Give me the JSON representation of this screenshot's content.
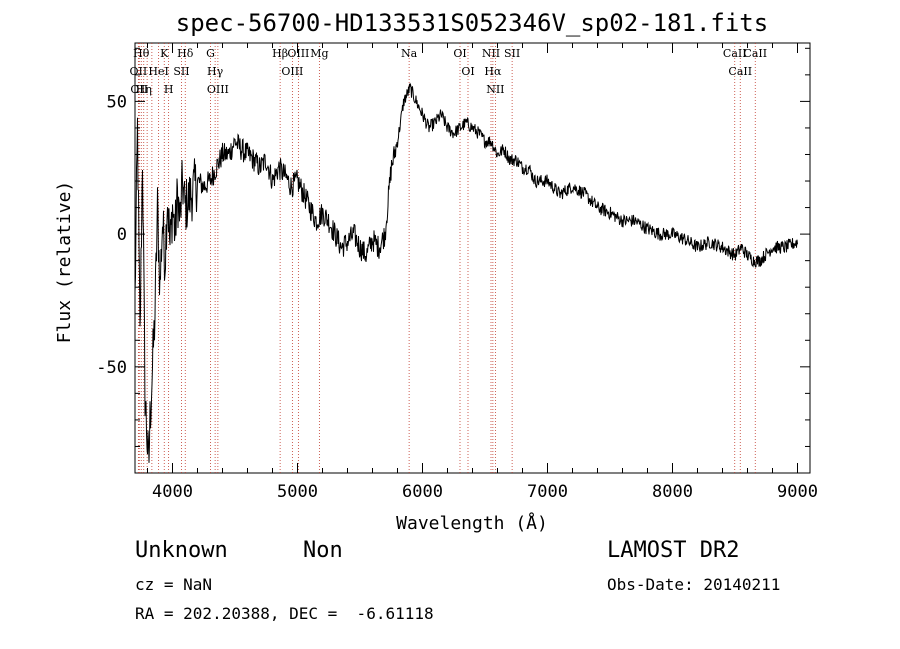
{
  "chart_data": {
    "type": "line",
    "title": "spec-56700-HD133531S052346V_sp02-181.fits",
    "xlabel": "Wavelength (Å)",
    "ylabel": "Flux (relative)",
    "xlim": [
      3700,
      9100
    ],
    "ylim": [
      -90,
      72
    ],
    "x_ticks": [
      4000,
      5000,
      6000,
      7000,
      8000,
      9000
    ],
    "y_ticks": [
      -50,
      0,
      50
    ],
    "grid": false,
    "series": [
      {
        "x": [
          3700,
          3720,
          3740,
          3760,
          3780,
          3800,
          3810,
          3820,
          3840,
          3860,
          3880,
          3900,
          3920,
          3940,
          3960,
          3980,
          4000,
          4020,
          4040,
          4060,
          4080,
          4100,
          4150,
          4200,
          4250,
          4300,
          4350,
          4400,
          4450,
          4500,
          4550,
          4600,
          4650,
          4700,
          4750,
          4800,
          4850,
          4900,
          4950,
          5000,
          5050,
          5100,
          5150,
          5200,
          5250,
          5300,
          5350,
          5400,
          5450,
          5500,
          5550,
          5600,
          5650,
          5700,
          5750,
          5800,
          5850,
          5900,
          5950,
          6000,
          6050,
          6100,
          6150,
          6200,
          6250,
          6300,
          6350,
          6400,
          6450,
          6500,
          6550,
          6600,
          6650,
          6700,
          6750,
          6800,
          6850,
          6900,
          7000,
          7100,
          7200,
          7300,
          7400,
          7500,
          7600,
          7700,
          7800,
          7900,
          8000,
          8100,
          8200,
          8300,
          8400,
          8500,
          8550,
          8600,
          8650,
          8700,
          8800,
          8900,
          9000
        ],
        "y": [
          -25,
          40,
          -40,
          30,
          -60,
          -80,
          -88,
          -70,
          -50,
          -30,
          10,
          -20,
          5,
          -10,
          15,
          -5,
          10,
          0,
          15,
          5,
          20,
          10,
          15,
          20,
          18,
          20,
          25,
          30,
          30,
          35,
          32,
          30,
          28,
          25,
          28,
          20,
          25,
          22,
          18,
          20,
          15,
          10,
          5,
          8,
          5,
          0,
          -5,
          -3,
          0,
          -5,
          -8,
          -2,
          -5,
          0,
          25,
          35,
          50,
          55,
          50,
          45,
          40,
          42,
          45,
          40,
          38,
          40,
          42,
          40,
          38,
          35,
          35,
          30,
          32,
          28,
          28,
          25,
          25,
          20,
          20,
          15,
          18,
          15,
          10,
          8,
          5,
          5,
          2,
          0,
          0,
          -2,
          -5,
          -3,
          -5,
          -8,
          -5,
          -8,
          -10,
          -10,
          -5,
          -5,
          -3
        ]
      }
    ],
    "lines": [
      {
        "x": 3750,
        "label": "Hθ"
      },
      {
        "x": 3727,
        "label": "OII"
      },
      {
        "x": 3734,
        "label": "OII"
      },
      {
        "x": 3770,
        "label": "Hη"
      },
      {
        "x": 3797,
        "label": ""
      },
      {
        "x": 3835,
        "label": ""
      },
      {
        "x": 3889,
        "label": "HeI"
      },
      {
        "x": 3934,
        "label": "K"
      },
      {
        "x": 3969,
        "label": "H"
      },
      {
        "x": 4072,
        "label": "SII"
      },
      {
        "x": 4102,
        "label": "Hδ"
      },
      {
        "x": 4304,
        "label": "G"
      },
      {
        "x": 4341,
        "label": "Hγ"
      },
      {
        "x": 4363,
        "label": "OIII"
      },
      {
        "x": 4861,
        "label": "Hβ"
      },
      {
        "x": 4959,
        "label": "OIII"
      },
      {
        "x": 5007,
        "label": "OIII"
      },
      {
        "x": 5175,
        "label": "Mg"
      },
      {
        "x": 5893,
        "label": "Na"
      },
      {
        "x": 6300,
        "label": "OI"
      },
      {
        "x": 6364,
        "label": "OI"
      },
      {
        "x": 6548,
        "label": "NII"
      },
      {
        "x": 6563,
        "label": "Hα"
      },
      {
        "x": 6583,
        "label": "NII"
      },
      {
        "x": 6717,
        "label": "SII"
      },
      {
        "x": 8498,
        "label": "CaII"
      },
      {
        "x": 8542,
        "label": "CaII"
      },
      {
        "x": 8662,
        "label": "CaII"
      }
    ]
  },
  "info": {
    "class": "Unknown",
    "subclass": "Non",
    "survey": "LAMOST DR2",
    "cz": "cz = NaN",
    "obs_date": "Obs-Date: 20140211",
    "coords": "RA = 202.20388, DEC =  -6.61118"
  }
}
